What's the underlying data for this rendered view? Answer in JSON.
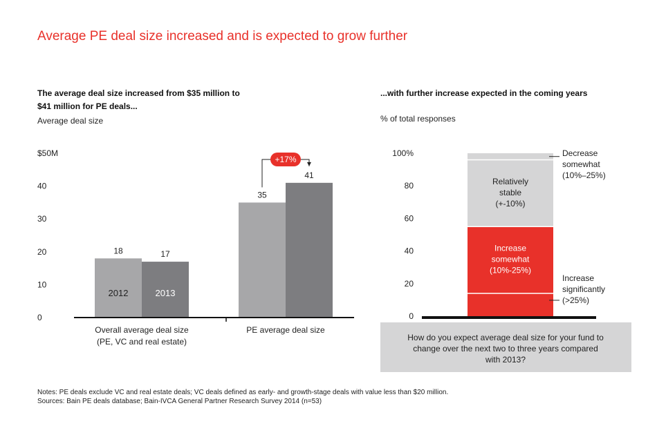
{
  "title": "Average PE deal size increased and is expected to grow further",
  "left_panel": {
    "subhead_line1": "The average deal size increased from $35 million to",
    "subhead_line2": "$41 million for PE deals...",
    "units": "Average deal size"
  },
  "right_panel": {
    "subhead": "...with further increase expected in the coming years",
    "units": "% of total responses",
    "question_line1": "How do you expect average deal size for your fund to",
    "question_line2": "change over the next two to three years compared",
    "question_line3": "with 2013?"
  },
  "chart_data": [
    {
      "type": "bar",
      "title": "Average deal size",
      "categories": [
        "Overall average deal size (PE, VC and real estate)",
        "PE average deal size"
      ],
      "category_lines": [
        [
          "Overall average deal size",
          "(PE, VC and real estate)"
        ],
        [
          "PE average deal size"
        ]
      ],
      "series": [
        {
          "name": "2012",
          "values": [
            18,
            35
          ]
        },
        {
          "name": "2013",
          "values": [
            17,
            41
          ]
        }
      ],
      "yticks": [
        "$50M",
        "40",
        "30",
        "20",
        "10",
        "0"
      ],
      "ytick_values": [
        50,
        40,
        30,
        20,
        10,
        0
      ],
      "ylim": [
        0,
        50
      ],
      "annotation": "+17%",
      "colors": {
        "2012": "#a7a7a9",
        "2013": "#7d7d80",
        "accent": "#e8312a"
      }
    },
    {
      "type": "bar",
      "stacked": true,
      "title": "% of total responses",
      "ylim": [
        0,
        100
      ],
      "yticks": [
        "100%",
        "80",
        "60",
        "40",
        "20",
        "0"
      ],
      "ytick_values": [
        100,
        80,
        60,
        40,
        20,
        0
      ],
      "segments": [
        {
          "name": "Increase significantly (>25%)",
          "lines": [
            "Increase",
            "significantly",
            "(>25%)"
          ],
          "value": 14,
          "color": "#e8312a",
          "label_position": "outside"
        },
        {
          "name": "Increase somewhat (10%-25%)",
          "lines": [
            "Increase",
            "somewhat",
            "(10%-25%)"
          ],
          "value": 41,
          "color": "#e8312a",
          "label_position": "inside"
        },
        {
          "name": "Relatively stable (+-10%)",
          "lines": [
            "Relatively",
            "stable",
            "(+-10%)"
          ],
          "value": 41,
          "color": "#d5d5d6",
          "label_position": "inside"
        },
        {
          "name": "Decrease somewhat (10%–25%)",
          "lines": [
            "Decrease",
            "somewhat",
            "(10%–25%)"
          ],
          "value": 4,
          "color": "#d5d5d6",
          "label_position": "outside"
        }
      ]
    }
  ],
  "notes": {
    "line1": "Notes: PE deals exclude VC and real estate deals; VC deals defined as early- and growth-stage deals with value less than $20 million.",
    "line2": "Sources: Bain PE deals database; Bain-IVCA General Partner Research Survey 2014 (n=53)"
  }
}
